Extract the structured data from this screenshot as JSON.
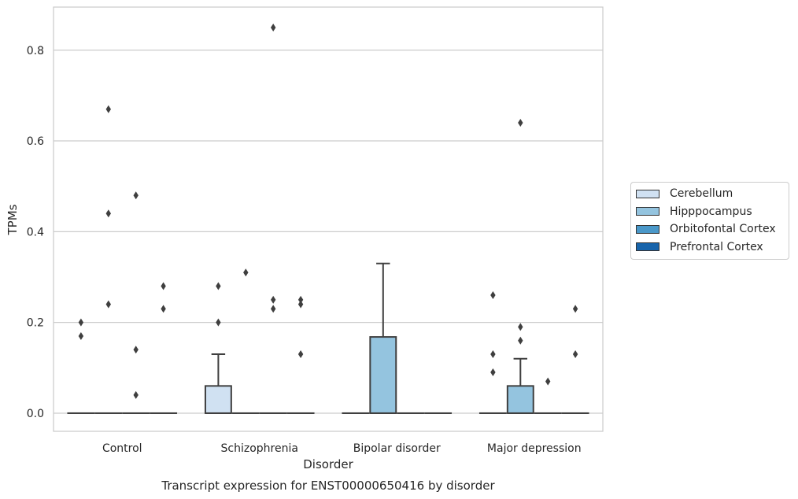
{
  "chart_data": {
    "type": "box",
    "title": "",
    "caption": "Transcript expression for ENST00000650416 by disorder",
    "xlabel": "Disorder",
    "ylabel": "TPMs",
    "ylim": [
      -0.04,
      0.895
    ],
    "yticks": [
      0.0,
      0.2,
      0.4,
      0.6,
      0.8
    ],
    "ytick_labels": [
      "0.0",
      "0.2",
      "0.4",
      "0.6",
      "0.8"
    ],
    "grid": "horizontal",
    "legend_position": "right",
    "categories": [
      "Control",
      "Schizophrenia",
      "Bipolar disorder",
      "Major depression"
    ],
    "series": [
      {
        "name": "Cerebellum",
        "color": "#d0e1f2",
        "boxes": [
          {
            "q1": 0,
            "median": 0,
            "q3": 0,
            "whislo": 0,
            "whishi": 0,
            "fliers": [
              0.17,
              0.2
            ]
          },
          {
            "q1": 0,
            "median": 0,
            "q3": 0.06,
            "whislo": 0,
            "whishi": 0.13,
            "fliers": [
              0.2,
              0.28
            ]
          },
          {
            "q1": 0,
            "median": 0,
            "q3": 0,
            "whislo": 0,
            "whishi": 0,
            "fliers": []
          },
          {
            "q1": 0,
            "median": 0,
            "q3": 0,
            "whislo": 0,
            "whishi": 0,
            "fliers": [
              0.09,
              0.13,
              0.26
            ]
          }
        ]
      },
      {
        "name": "Hipppocampus",
        "color": "#94c4df",
        "boxes": [
          {
            "q1": 0,
            "median": 0,
            "q3": 0,
            "whislo": 0,
            "whishi": 0,
            "fliers": [
              0.24,
              0.44,
              0.67
            ]
          },
          {
            "q1": 0,
            "median": 0,
            "q3": 0,
            "whislo": 0,
            "whishi": 0,
            "fliers": [
              0.31
            ]
          },
          {
            "q1": 0,
            "median": 0,
            "q3": 0.168,
            "whislo": 0,
            "whishi": 0.33,
            "fliers": []
          },
          {
            "q1": 0,
            "median": 0,
            "q3": 0.06,
            "whislo": 0,
            "whishi": 0.12,
            "fliers": [
              0.16,
              0.19,
              0.64
            ]
          }
        ]
      },
      {
        "name": "Orbitofontal Cortex",
        "color": "#4a98c9",
        "boxes": [
          {
            "q1": 0,
            "median": 0,
            "q3": 0,
            "whislo": 0,
            "whishi": 0,
            "fliers": [
              0.04,
              0.14,
              0.48
            ]
          },
          {
            "q1": 0,
            "median": 0,
            "q3": 0,
            "whislo": 0,
            "whishi": 0,
            "fliers": [
              0.23,
              0.25,
              0.85
            ]
          },
          {
            "q1": 0,
            "median": 0,
            "q3": 0,
            "whislo": 0,
            "whishi": 0,
            "fliers": []
          },
          {
            "q1": 0,
            "median": 0,
            "q3": 0,
            "whislo": 0,
            "whishi": 0,
            "fliers": [
              0.07
            ]
          }
        ]
      },
      {
        "name": "Prefrontal Cortex",
        "color": "#1764ab",
        "boxes": [
          {
            "q1": 0,
            "median": 0,
            "q3": 0,
            "whislo": 0,
            "whishi": 0,
            "fliers": [
              0.23,
              0.28
            ]
          },
          {
            "q1": 0,
            "median": 0,
            "q3": 0,
            "whislo": 0,
            "whishi": 0,
            "fliers": [
              0.13,
              0.24,
              0.25
            ]
          },
          {
            "q1": 0,
            "median": 0,
            "q3": 0,
            "whislo": 0,
            "whishi": 0,
            "fliers": []
          },
          {
            "q1": 0,
            "median": 0,
            "q3": 0,
            "whislo": 0,
            "whishi": 0,
            "fliers": [
              0.13,
              0.23
            ]
          }
        ]
      }
    ]
  }
}
